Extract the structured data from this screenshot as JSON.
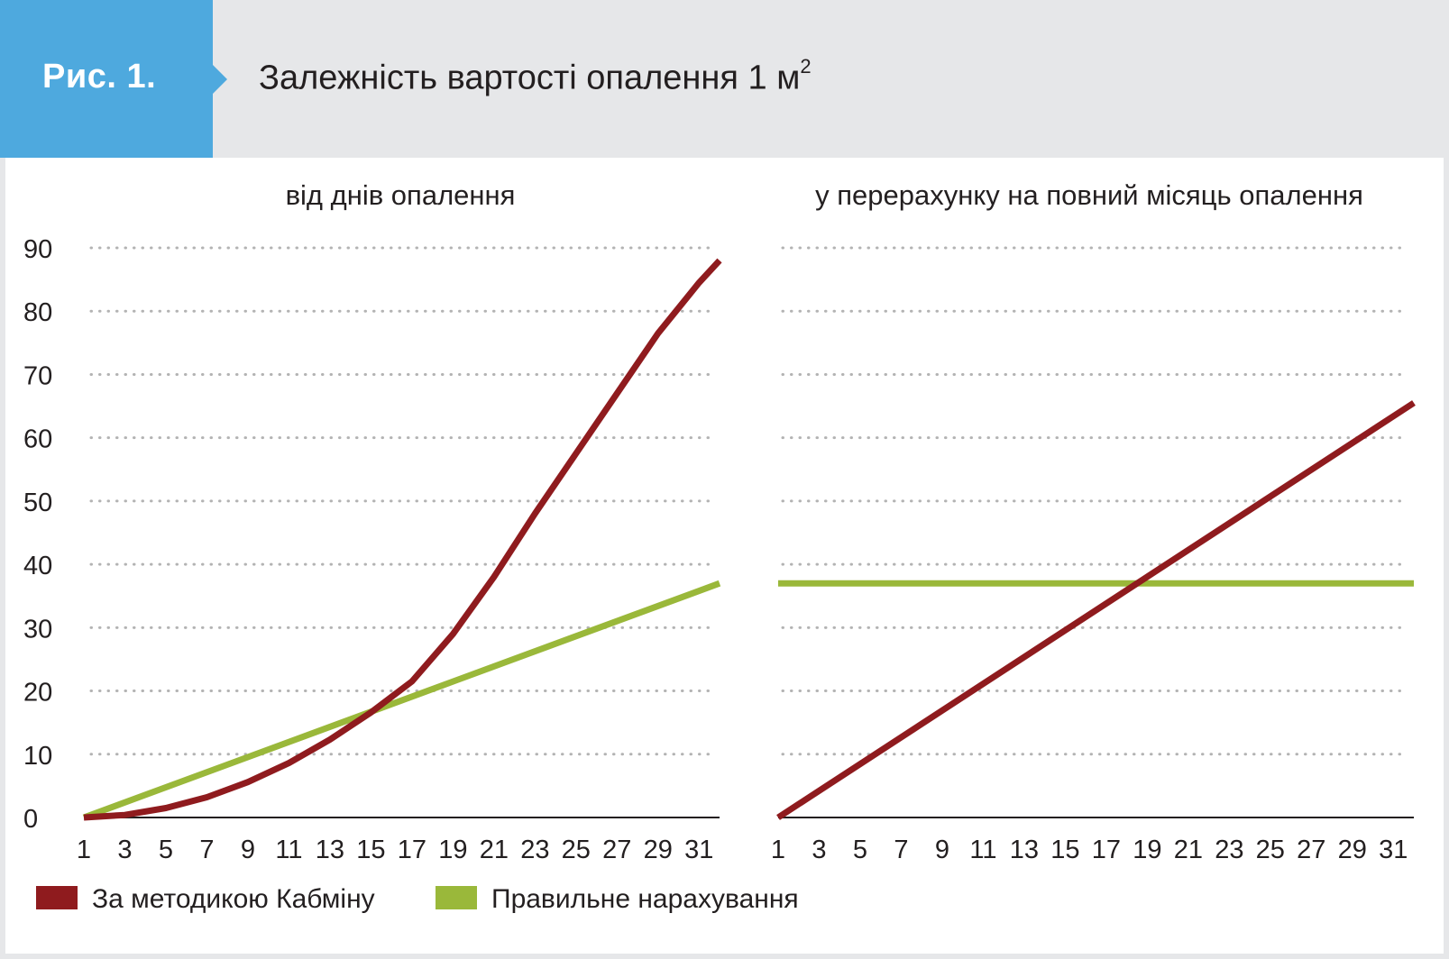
{
  "figure": {
    "label": "Рис. 1.",
    "title": "Залежність вартості опалення 1 м",
    "title_superscript": "2"
  },
  "colors": {
    "header_bg": "#e6e7e9",
    "label_bg": "#4ea9de",
    "kabmin": "#8f1b1e",
    "correct": "#9ab83a",
    "grid": "#b3b3b3",
    "text": "#231f20"
  },
  "legend": [
    {
      "label": "За методикою Кабміну",
      "color": "#8f1b1e"
    },
    {
      "label": "Правильне нарахування",
      "color": "#9ab83a"
    }
  ],
  "chart_data": [
    {
      "type": "line",
      "title": "від днів опалення",
      "x": [
        1,
        3,
        5,
        7,
        9,
        11,
        13,
        15,
        17,
        19,
        21,
        23,
        25,
        27,
        29,
        31
      ],
      "x_ticks": [
        "1",
        "3",
        "5",
        "7",
        "9",
        "11",
        "13",
        "15",
        "17",
        "19",
        "21",
        "23",
        "25",
        "27",
        "29",
        "31"
      ],
      "xlim": [
        1,
        32
      ],
      "ylim": [
        0,
        90
      ],
      "y_ticks": [
        "0",
        "10",
        "20",
        "30",
        "40",
        "50",
        "60",
        "70",
        "80",
        "90"
      ],
      "grid": "horizontal-dotted",
      "series": [
        {
          "name": "За методикою Кабміну",
          "color": "#8f1b1e",
          "x": [
            1,
            3,
            5,
            7,
            9,
            11,
            13,
            15,
            17,
            19,
            21,
            23,
            25,
            27,
            29,
            31,
            32
          ],
          "values": [
            0,
            0.4,
            1.5,
            3.2,
            5.6,
            8.6,
            12.3,
            16.6,
            21.5,
            29.0,
            38.0,
            48.0,
            57.5,
            67.0,
            76.5,
            84.5,
            88
          ]
        },
        {
          "name": "Правильне нарахування",
          "color": "#9ab83a",
          "x": [
            1,
            32
          ],
          "values": [
            0,
            37
          ]
        }
      ]
    },
    {
      "type": "line",
      "title": "у перерахунку на повний місяць опалення",
      "x": [
        1,
        3,
        5,
        7,
        9,
        11,
        13,
        15,
        17,
        19,
        21,
        23,
        25,
        27,
        29,
        31
      ],
      "x_ticks": [
        "1",
        "3",
        "5",
        "7",
        "9",
        "11",
        "13",
        "15",
        "17",
        "19",
        "21",
        "23",
        "25",
        "27",
        "29",
        "31"
      ],
      "xlim": [
        1,
        32
      ],
      "ylim": [
        0,
        90
      ],
      "grid": "horizontal-dotted",
      "series": [
        {
          "name": "За методикою Кабміну",
          "color": "#8f1b1e",
          "x": [
            1,
            32
          ],
          "values": [
            0,
            65.5
          ]
        },
        {
          "name": "Правильне нарахування",
          "color": "#9ab83a",
          "x": [
            1,
            32
          ],
          "values": [
            37,
            37
          ]
        }
      ]
    }
  ]
}
